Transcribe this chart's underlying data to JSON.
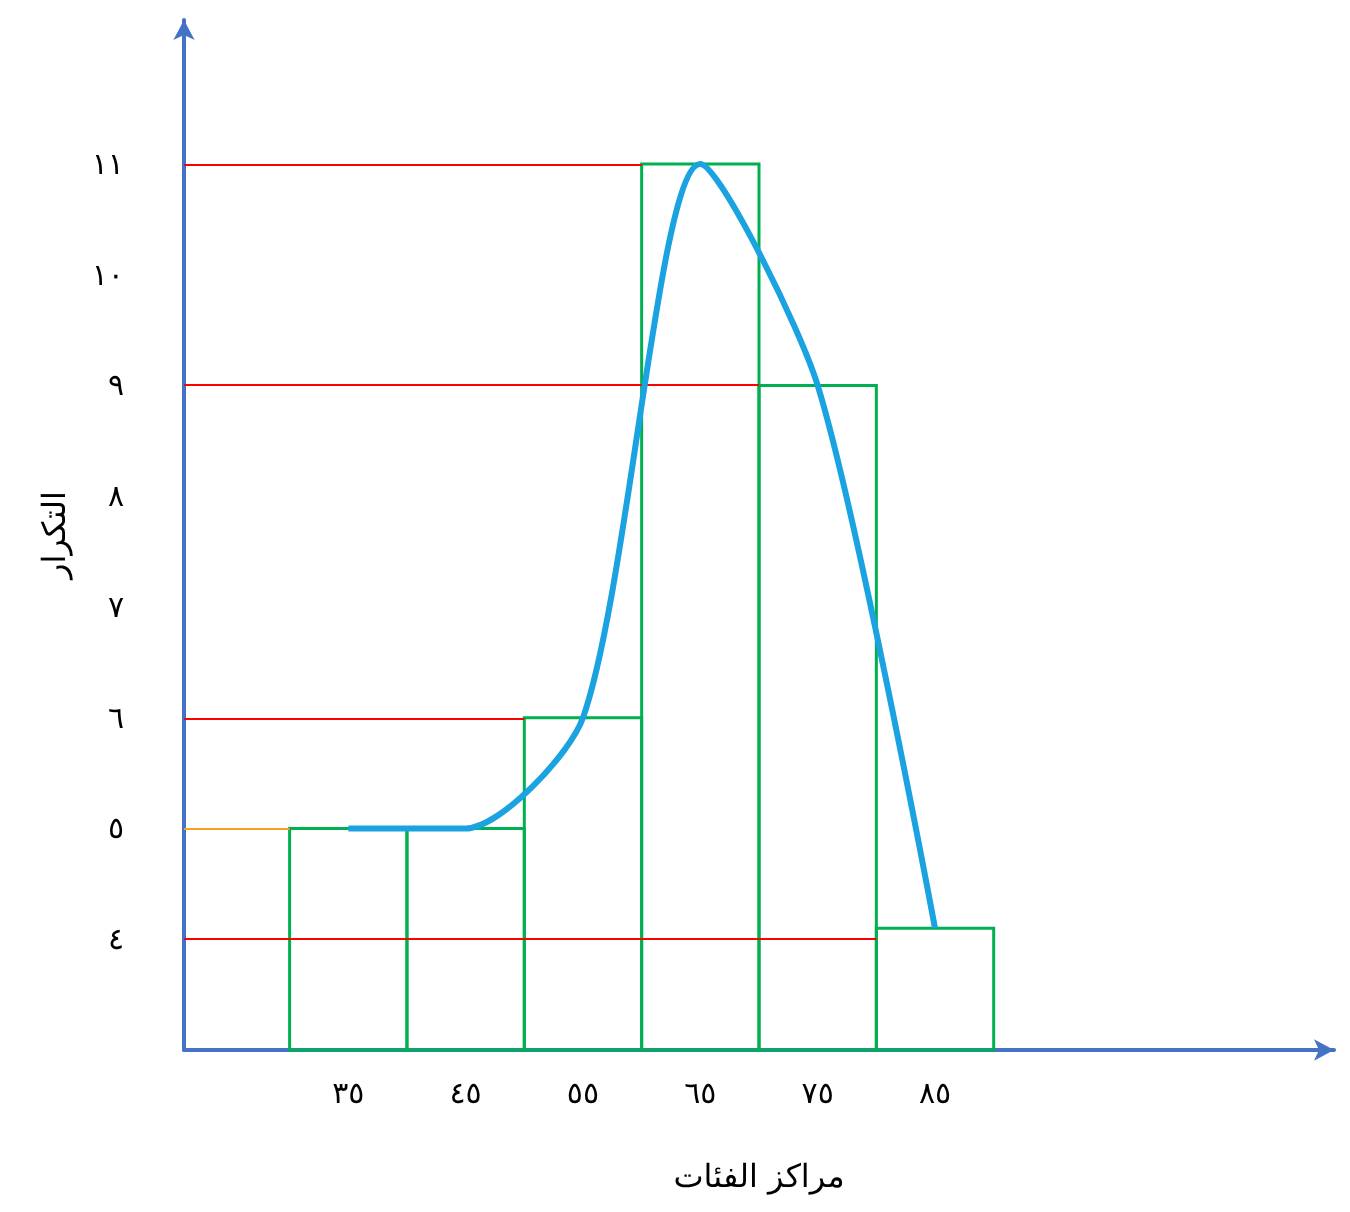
{
  "chart_data": {
    "type": "histogram",
    "xlabel": "مراكز الفئات",
    "ylabel": "التكرار",
    "bins": [
      30,
      40,
      50,
      60,
      70,
      80,
      90
    ],
    "values": [
      5,
      5,
      6,
      11,
      9,
      4.1
    ],
    "color": "#00b050",
    "xlim": [
      21,
      119
    ],
    "ylim": [
      3,
      12.3
    ],
    "xticks": [
      {
        "value": 35,
        "label": "٣٥"
      },
      {
        "value": 45,
        "label": "٤٥"
      },
      {
        "value": 55,
        "label": "٥٥"
      },
      {
        "value": 65,
        "label": "٦٥"
      },
      {
        "value": 75,
        "label": "٧٥"
      },
      {
        "value": 85,
        "label": "٨٥"
      }
    ],
    "yticks": [
      {
        "value": 4,
        "label": "٤"
      },
      {
        "value": 5,
        "label": "٥"
      },
      {
        "value": 6,
        "label": "٦"
      },
      {
        "value": 7,
        "label": "٧"
      },
      {
        "value": 8,
        "label": "٨"
      },
      {
        "value": 9,
        "label": "٩"
      },
      {
        "value": 10,
        "label": "١٠"
      },
      {
        "value": 11,
        "label": "١١"
      }
    ],
    "series": [
      {
        "type": "line",
        "color": "#1aa3e0",
        "x": [
          35,
          45,
          55,
          65,
          75,
          85
        ],
        "values": [
          5,
          5,
          6,
          11,
          9,
          4.1
        ]
      }
    ],
    "ref_lines": [
      {
        "axis": "y",
        "value": 11,
        "color": "#ff0000"
      },
      {
        "axis": "y",
        "value": 9,
        "color": "#ff0000"
      },
      {
        "axis": "y",
        "value": 6,
        "color": "#ff0000"
      },
      {
        "axis": "y",
        "value": 5,
        "color": "#f4a020"
      },
      {
        "axis": "y",
        "value": 4,
        "color": "#ff0000"
      }
    ],
    "grid": false
  }
}
